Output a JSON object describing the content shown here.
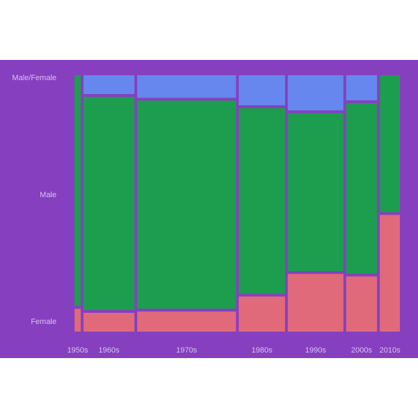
{
  "chart_data": {
    "type": "mosaic",
    "title": "",
    "xlabel": "",
    "ylabel": "",
    "categories": [
      "1950s",
      "1960s",
      "1970s",
      "1980s",
      "1990s",
      "2000s",
      "2010s"
    ],
    "column_share": [
      0.02,
      0.165,
      0.32,
      0.15,
      0.18,
      0.1,
      0.065
    ],
    "y_categories": [
      "Female",
      "Male",
      "Male/Female"
    ],
    "series": [
      {
        "name": "Female",
        "values": [
          0.09,
          0.075,
          0.08,
          0.14,
          0.23,
          0.22,
          0.46
        ]
      },
      {
        "name": "Male",
        "values": [
          0.91,
          0.85,
          0.83,
          0.74,
          0.63,
          0.68,
          0.54
        ]
      },
      {
        "name": "Male/Female",
        "values": [
          0.0,
          0.075,
          0.09,
          0.12,
          0.14,
          0.1,
          0.0
        ]
      }
    ],
    "colors": {
      "Female": "#E06A7A",
      "Male": "#1C9E4E",
      "Male/Female": "#6688EE",
      "background": "#8640BF",
      "text": "#D8C3EC"
    },
    "legend": "none",
    "grid": false
  }
}
